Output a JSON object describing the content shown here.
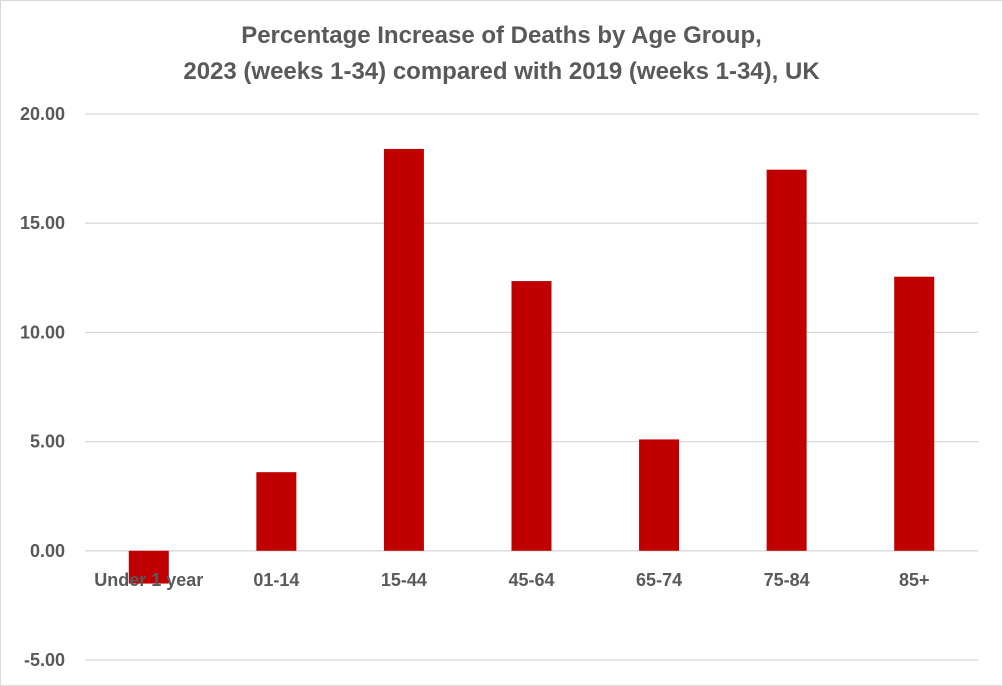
{
  "chart_data": {
    "type": "bar",
    "title_line1": "Percentage Increase of Deaths by Age Group,",
    "title_line2": "2023 (weeks 1-34) compared with 2019 (weeks 1-34), UK",
    "categories": [
      "Under 1 year",
      "01-14",
      "15-44",
      "45-64",
      "65-74",
      "75-84",
      "85+"
    ],
    "values": [
      -1.5,
      3.6,
      18.4,
      12.35,
      5.1,
      17.45,
      12.55
    ],
    "ylim": [
      -5,
      20
    ],
    "yticks": [
      "20.00",
      "15.00",
      "10.00",
      "5.00",
      "0.00",
      "-5.00"
    ],
    "ytick_values": [
      20,
      15,
      10,
      5,
      0,
      -5
    ],
    "grid": true,
    "bar_color": "#c00000",
    "grid_color": "#d9d9d9"
  }
}
